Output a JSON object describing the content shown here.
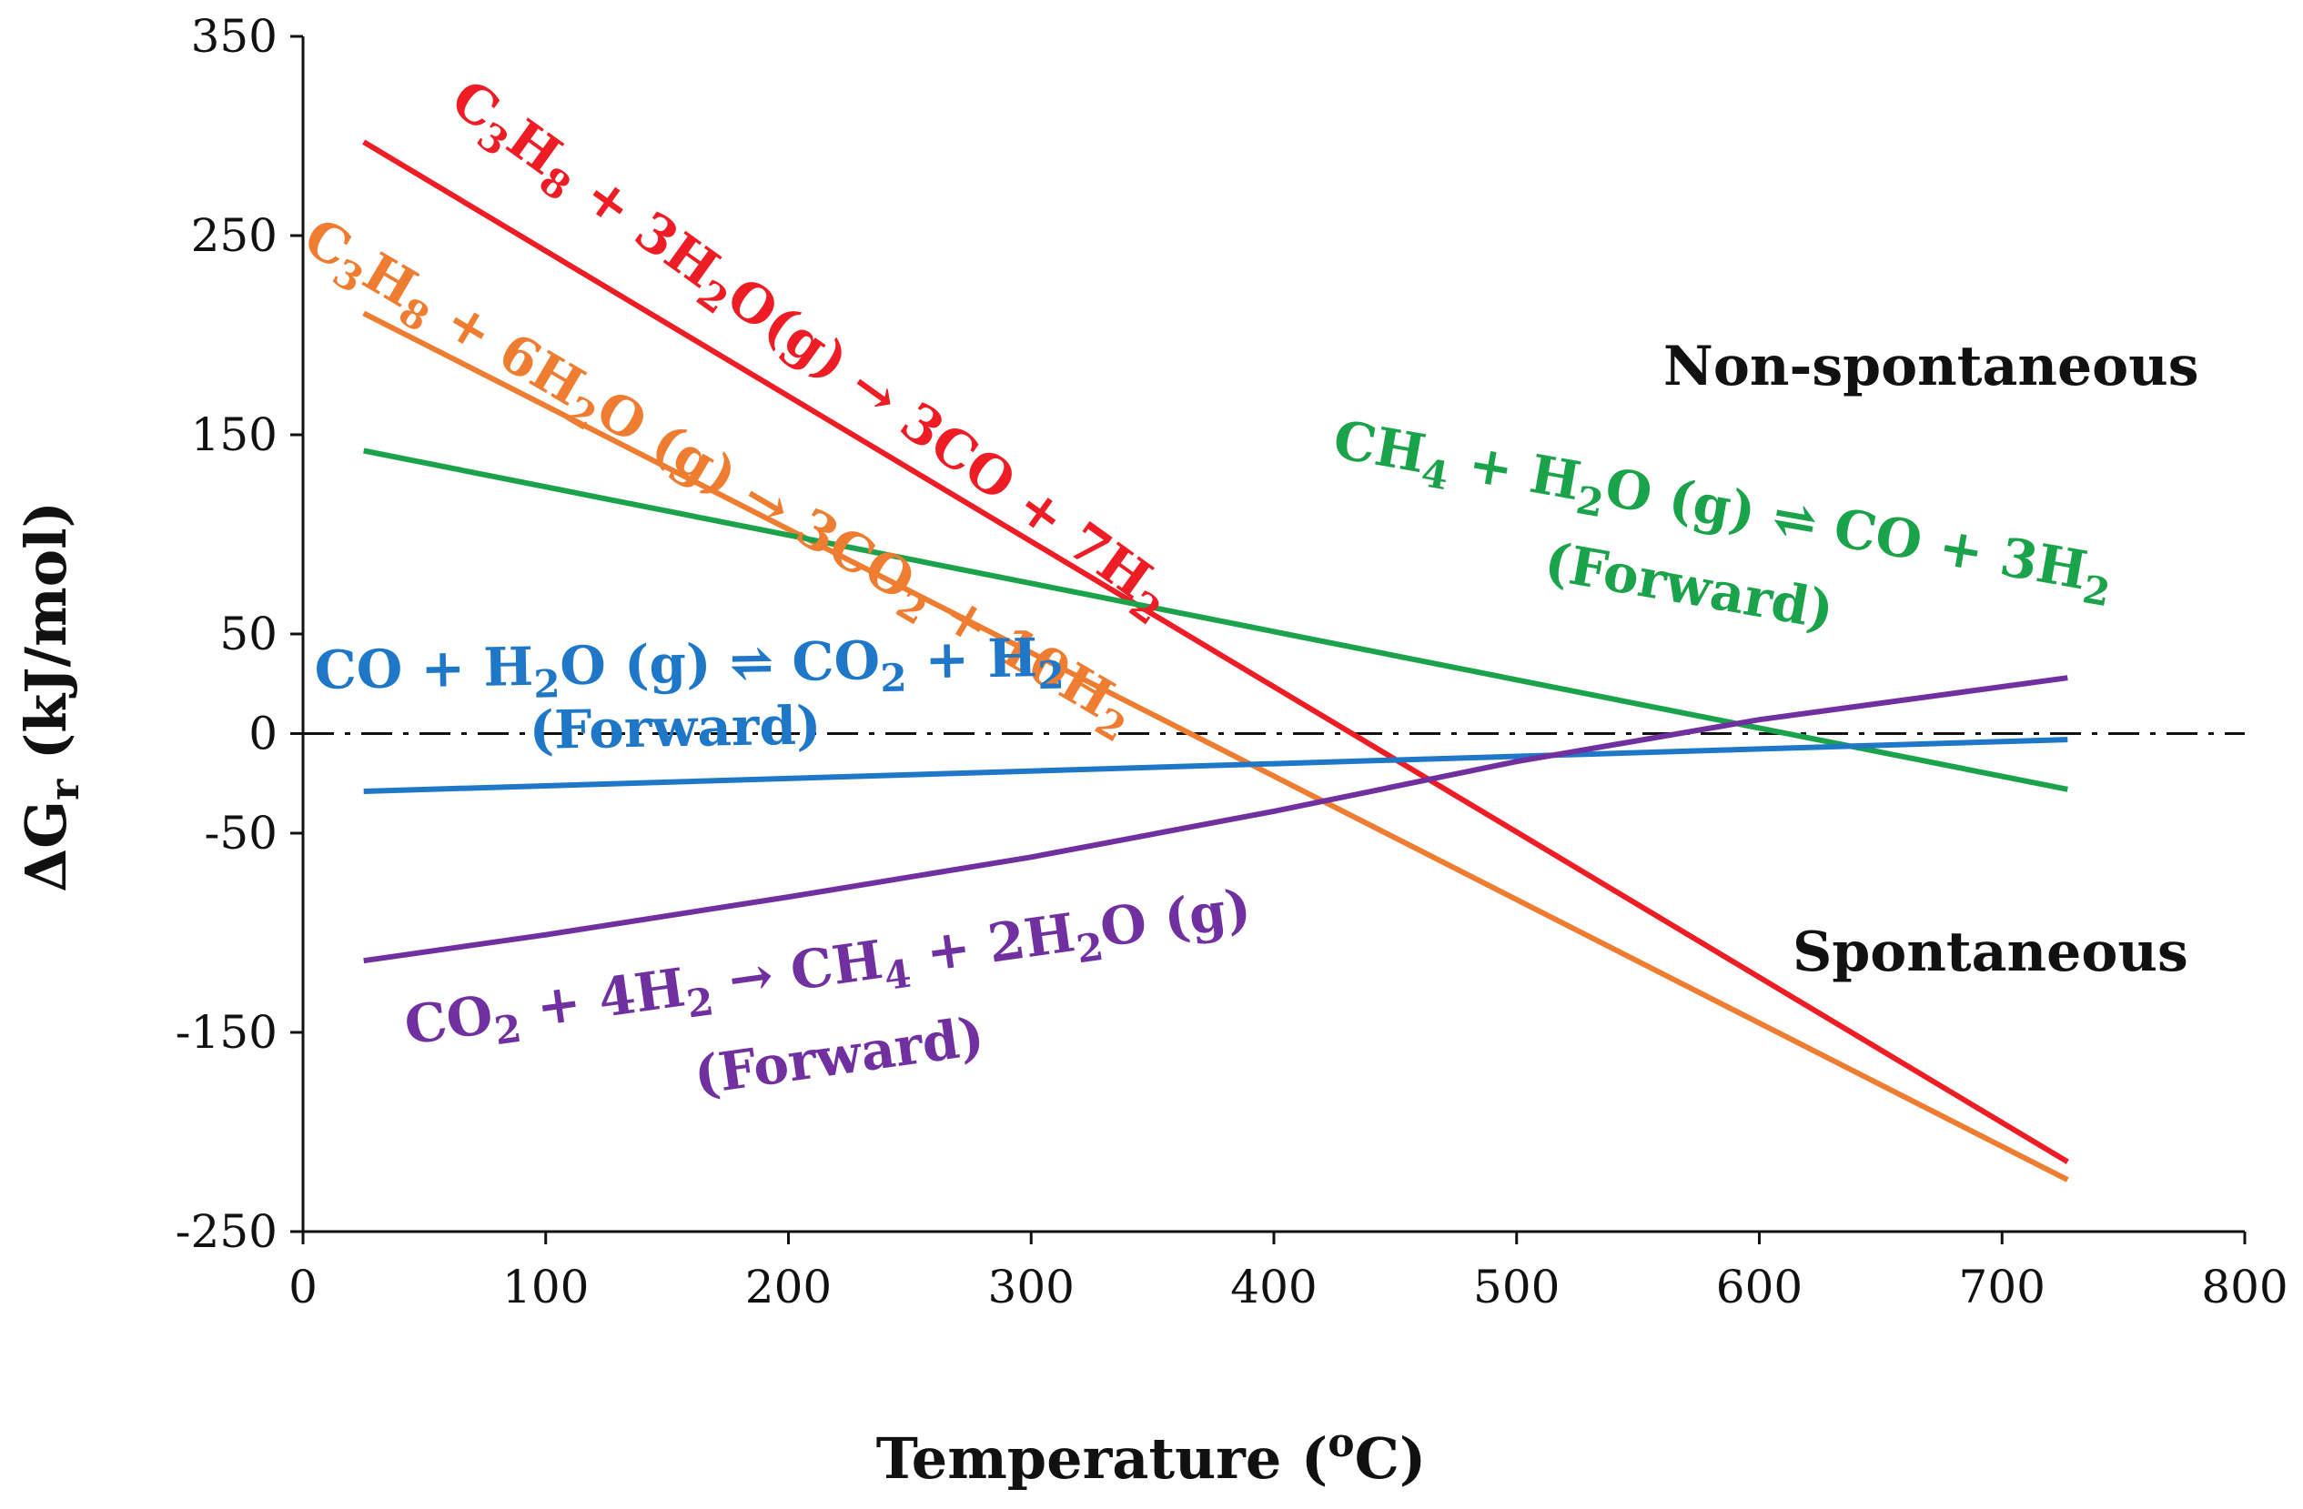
{
  "chart_data": {
    "type": "line",
    "xlabel": "Temperature (°C)",
    "xlabel_parts": [
      "Temperature (",
      "o",
      "C)"
    ],
    "ylabel": "ΔGr (kJ/mol)",
    "ylabel_parts": [
      "ΔG",
      "r",
      " (kJ/mol)"
    ],
    "xlim": [
      0,
      800
    ],
    "ylim": [
      -250,
      350
    ],
    "x_ticks": [
      0,
      100,
      200,
      300,
      400,
      500,
      600,
      700,
      800
    ],
    "y_ticks": [
      350,
      250,
      150,
      50,
      0,
      -50,
      -150,
      -250
    ],
    "grid": false,
    "reference_line": {
      "y": 0,
      "style": "dash-dot",
      "color": "#111111"
    },
    "regions": {
      "upper": "Non-spontaneous",
      "lower": "Spontaneous"
    },
    "series": [
      {
        "id": "c3h8-3h2o",
        "name": "C3H8 + 3H2O(g) → 3CO + 7H2",
        "color": "#ee1c25",
        "x": [
          25,
          727
        ],
        "y": [
          297,
          -215
        ]
      },
      {
        "id": "c3h8-6h2o",
        "name": "C3H8 + 6H2O (g) → 3CO2 + 10H2",
        "color": "#ef7d31",
        "x": [
          25,
          727
        ],
        "y": [
          211,
          -224
        ]
      },
      {
        "id": "ch4-reforming",
        "name": "CH4 + H2O (g) ⇌ CO + 3H2 (Forward)",
        "color": "#1aa34a",
        "x": [
          25,
          727
        ],
        "y": [
          142,
          -28
        ]
      },
      {
        "id": "wgs",
        "name": "CO + H2O (g) ⇌ CO2 + H2 (Forward)",
        "color": "#1f77c8",
        "x": [
          25,
          727
        ],
        "y": [
          -29,
          -3
        ]
      },
      {
        "id": "methanation",
        "name": "CO2 + 4H2 → CH4 + 2H2O (g) (Forward)",
        "color": "#7030a0",
        "x": [
          25,
          100,
          200,
          300,
          400,
          500,
          600,
          727
        ],
        "y": [
          -114,
          -101,
          -82,
          -62,
          -39,
          -14,
          7,
          28
        ]
      }
    ],
    "annotations": {
      "red": [
        {
          "t": "C",
          "s": "n"
        },
        {
          "t": "3",
          "s": "sub"
        },
        {
          "t": "H",
          "s": "n"
        },
        {
          "t": "8",
          "s": "sub"
        },
        {
          "t": " + 3H",
          "s": "n"
        },
        {
          "t": "2",
          "s": "sub"
        },
        {
          "t": "O(g) → 3CO + 7H",
          "s": "n"
        },
        {
          "t": "2",
          "s": "sub"
        }
      ],
      "orange": [
        {
          "t": "C",
          "s": "n"
        },
        {
          "t": "3",
          "s": "sub"
        },
        {
          "t": "H",
          "s": "n"
        },
        {
          "t": "8",
          "s": "sub"
        },
        {
          "t": " + 6H",
          "s": "n"
        },
        {
          "t": "2",
          "s": "sub"
        },
        {
          "t": "O (g) → 3CO",
          "s": "n"
        },
        {
          "t": "2",
          "s": "sub"
        },
        {
          "t": " + 10H",
          "s": "n"
        },
        {
          "t": "2",
          "s": "sub"
        }
      ],
      "green_line1": [
        {
          "t": "CH",
          "s": "n"
        },
        {
          "t": "4",
          "s": "sub"
        },
        {
          "t": " + H",
          "s": "n"
        },
        {
          "t": "2",
          "s": "sub"
        },
        {
          "t": "O (g) ⇌ CO + 3H",
          "s": "n"
        },
        {
          "t": "2",
          "s": "sub"
        }
      ],
      "green_line2": [
        {
          "t": "(Forward)",
          "s": "n"
        }
      ],
      "blue_line1": [
        {
          "t": "CO + H",
          "s": "n"
        },
        {
          "t": "2",
          "s": "sub"
        },
        {
          "t": "O (g) ⇌ CO",
          "s": "n"
        },
        {
          "t": "2",
          "s": "sub"
        },
        {
          "t": " + H",
          "s": "n"
        },
        {
          "t": "2",
          "s": "sub"
        }
      ],
      "blue_line2": [
        {
          "t": "(Forward)",
          "s": "n"
        }
      ],
      "purple_line1": [
        {
          "t": "CO",
          "s": "n"
        },
        {
          "t": "2",
          "s": "sub"
        },
        {
          "t": " + 4H",
          "s": "n"
        },
        {
          "t": "2",
          "s": "sub"
        },
        {
          "t": " → CH",
          "s": "n"
        },
        {
          "t": "4",
          "s": "sub"
        },
        {
          "t": " + 2H",
          "s": "n"
        },
        {
          "t": "2",
          "s": "sub"
        },
        {
          "t": "O (g)",
          "s": "n"
        }
      ],
      "purple_line2": [
        {
          "t": "(Forward)",
          "s": "n"
        }
      ]
    }
  }
}
